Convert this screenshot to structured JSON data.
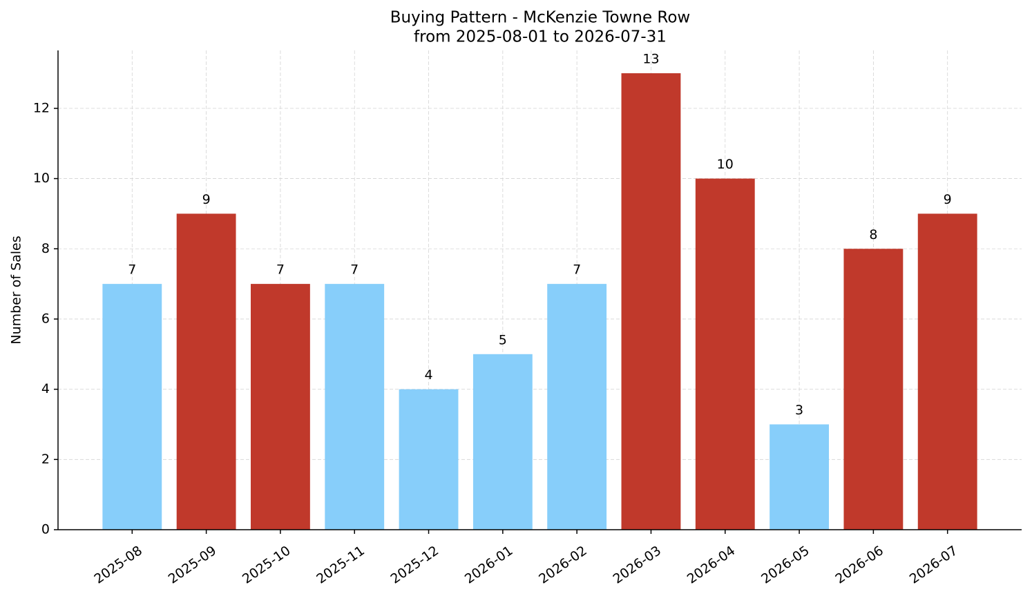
{
  "chart_data": {
    "type": "bar",
    "title": "Buying Pattern - McKenzie Towne Row",
    "subtitle": "from 2025-08-01 to 2026-07-31",
    "y_label": "Number of Sales",
    "categories": [
      "2025-08",
      "2025-09",
      "2025-10",
      "2025-11",
      "2025-12",
      "2026-01",
      "2026-02",
      "2026-03",
      "2026-04",
      "2026-05",
      "2026-06",
      "2026-07"
    ],
    "values": [
      7,
      9,
      7,
      7,
      4,
      5,
      7,
      13,
      10,
      3,
      8,
      9
    ],
    "colors": [
      "#87cefa",
      "#c0392b",
      "#c0392b",
      "#87cefa",
      "#87cefa",
      "#87cefa",
      "#87cefa",
      "#c0392b",
      "#c0392b",
      "#87cefa",
      "#c0392b",
      "#c0392b"
    ],
    "ylim": [
      0,
      13.65
    ],
    "yticks": [
      0,
      2,
      4,
      6,
      8,
      10,
      12
    ],
    "grid": true
  }
}
